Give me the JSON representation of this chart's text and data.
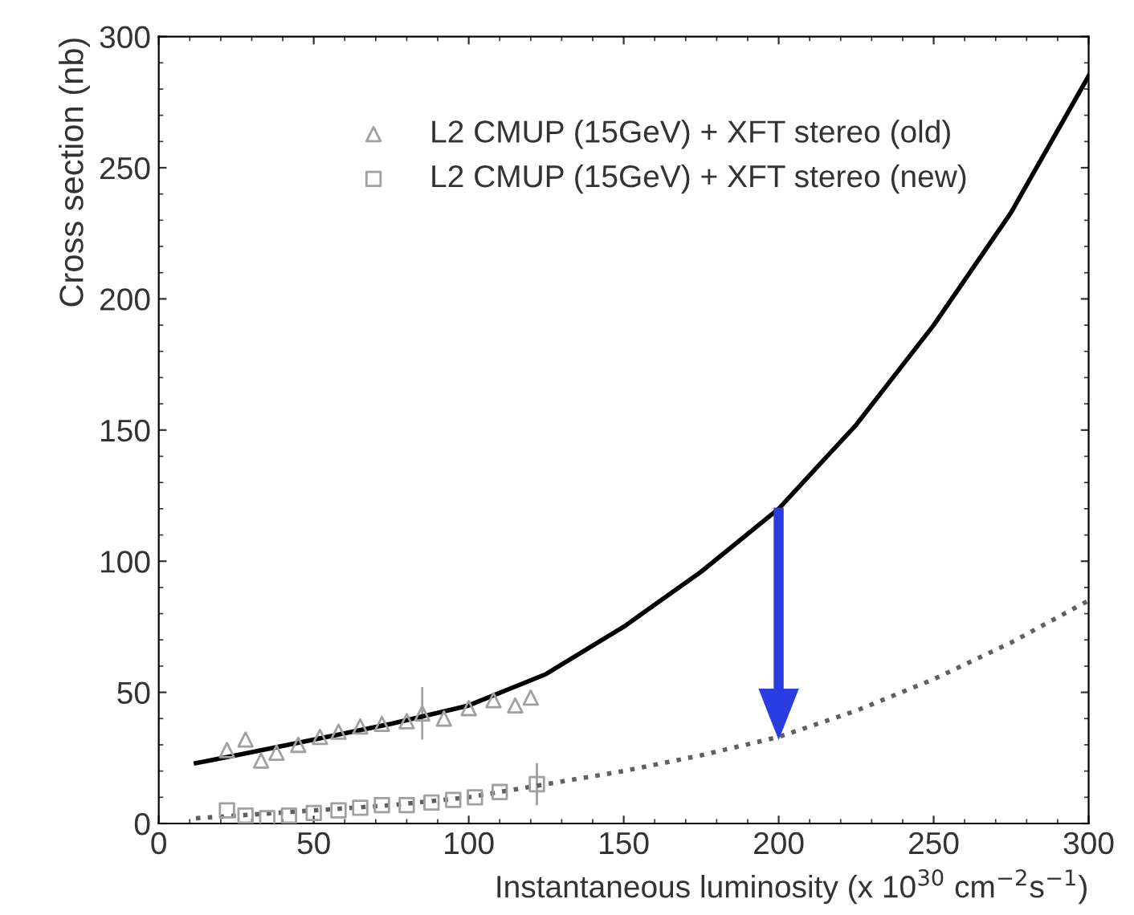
{
  "chart_data": {
    "type": "scatter",
    "xlabel": "Instantaneous luminosity (x 10$^{30}$ cm$^{−2}$s$^{−1}$)",
    "ylabel": "Cross section (nb)",
    "xlim": [
      0,
      300
    ],
    "ylim": [
      0,
      300
    ],
    "xticks": [
      0,
      50,
      100,
      150,
      200,
      250,
      300
    ],
    "yticks": [
      0,
      50,
      100,
      150,
      200,
      250,
      300
    ],
    "grid": false,
    "legend": "top right",
    "series": [
      {
        "name": "L2 CMUP (15GeV) + XFT stereo (old)",
        "marker": "triangle",
        "color": "#a0a0a0",
        "x": [
          22,
          28,
          33,
          38,
          45,
          52,
          58,
          65,
          72,
          80,
          85,
          92,
          100,
          108,
          115,
          120
        ],
        "values": [
          28,
          32,
          24,
          27,
          30,
          33,
          35,
          37,
          38,
          39,
          42,
          40,
          44,
          47,
          45,
          48
        ],
        "errors": [
          null,
          null,
          null,
          null,
          null,
          null,
          null,
          null,
          null,
          null,
          10,
          null,
          null,
          null,
          null,
          null
        ]
      },
      {
        "name": "L2 CMUP (15GeV) + XFT stereo (new)",
        "marker": "square",
        "color": "#a0a0a0",
        "x": [
          22,
          28,
          35,
          42,
          50,
          58,
          65,
          72,
          80,
          88,
          95,
          102,
          110,
          122
        ],
        "values": [
          5,
          3,
          2,
          3,
          4,
          5,
          6,
          7,
          7,
          8,
          9,
          10,
          12,
          15
        ],
        "errors": [
          null,
          null,
          null,
          null,
          null,
          null,
          null,
          null,
          null,
          null,
          null,
          null,
          null,
          8
        ]
      },
      {
        "type": "line",
        "line_style": "solid",
        "color": "#000000",
        "x": [
          12,
          25,
          50,
          75,
          100,
          125,
          150,
          175,
          200,
          225,
          250,
          275,
          300
        ],
        "values": [
          23,
          26,
          32,
          38,
          45,
          57,
          75,
          96,
          120,
          152,
          190,
          233,
          285
        ]
      },
      {
        "type": "line",
        "line_style": "dotted",
        "color": "#606060",
        "x": [
          12,
          25,
          50,
          75,
          100,
          125,
          150,
          175,
          200,
          225,
          250,
          275,
          300
        ],
        "values": [
          2,
          3,
          5,
          7,
          10,
          15,
          20,
          26,
          33,
          43,
          55,
          69,
          85
        ]
      }
    ]
  }
}
